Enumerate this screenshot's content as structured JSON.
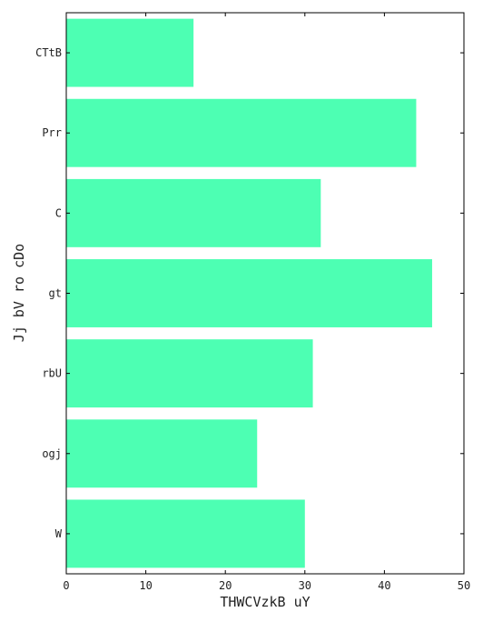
{
  "chart_data": {
    "type": "bar",
    "orientation": "horizontal",
    "categories": [
      "W",
      "ogj",
      "rbU",
      "gt",
      "C",
      "Prr",
      "CTtB"
    ],
    "values": [
      30,
      24,
      31,
      46,
      32,
      44,
      16
    ],
    "xlabel": "THWCVzkB uY",
    "ylabel": "Jj bV ro cDo",
    "xlim": [
      0,
      50
    ],
    "xticks": [
      "0",
      "10",
      "20",
      "30",
      "40",
      "50"
    ],
    "bar_color": "#4dffb3",
    "grid": false
  }
}
